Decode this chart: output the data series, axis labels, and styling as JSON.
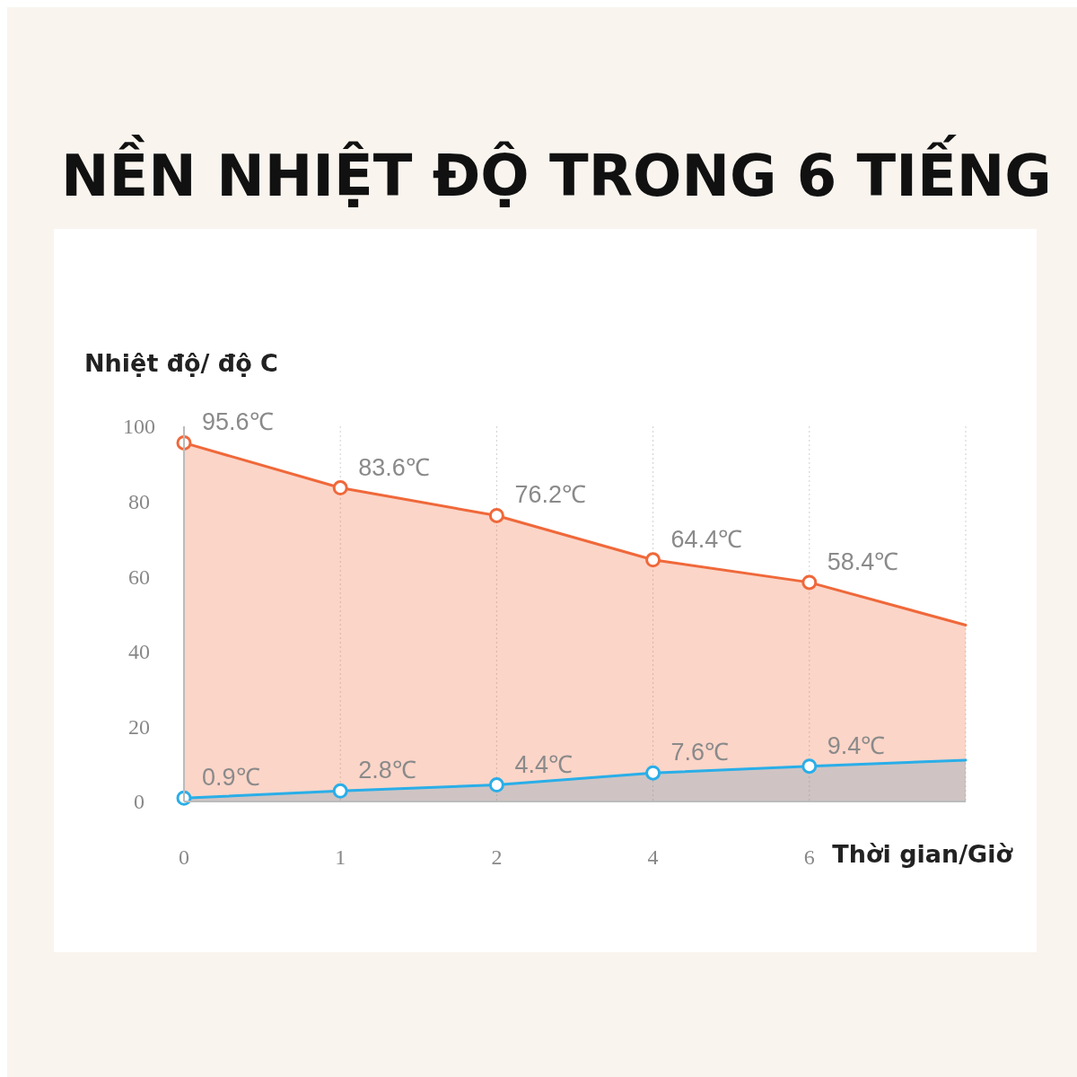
{
  "chart_data": {
    "type": "area",
    "title": "NỀN NHIỆT ĐỘ TRONG 6 TIẾNG",
    "xlabel": "Thời gian/Giờ",
    "ylabel": "Nhiệt độ/ độ C",
    "categories": [
      "0",
      "1",
      "2",
      "4",
      "6",
      null
    ],
    "ylim": [
      0,
      100
    ],
    "yticks": [
      0,
      20,
      40,
      60,
      80,
      100
    ],
    "grid": "x",
    "marker": "circle",
    "line_style": "solid",
    "series": [
      {
        "color": "#f0683a",
        "values": [
          95.6,
          83.6,
          76.2,
          64.4,
          58.4,
          47
        ],
        "value_labels": [
          "95.6℃",
          "83.6℃",
          "76.2℃",
          "64.4℃",
          "58.4℃",
          null
        ]
      },
      {
        "color": "#29aee8",
        "values": [
          0.9,
          2.8,
          4.4,
          7.6,
          9.4,
          11
        ],
        "value_labels": [
          "0.9℃",
          "2.8℃",
          "4.4℃",
          "7.6℃",
          "9.4℃",
          null
        ]
      }
    ]
  }
}
